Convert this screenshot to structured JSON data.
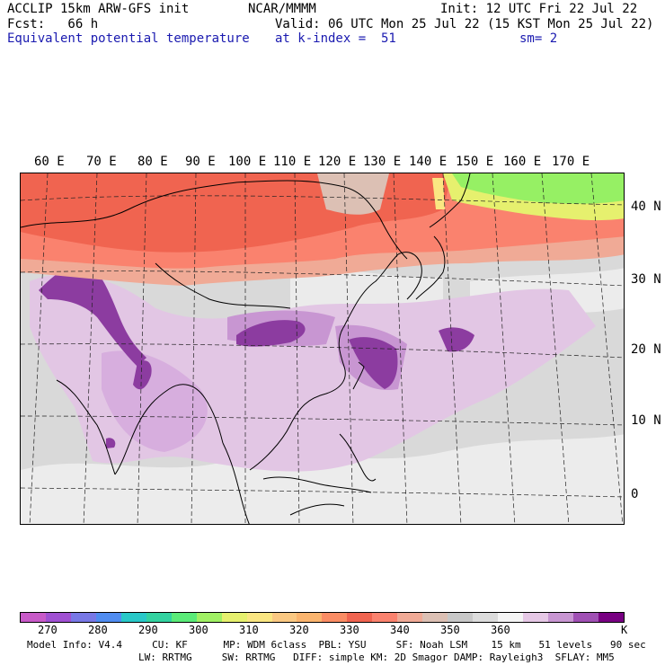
{
  "header": {
    "model": "ACCLIP 15km ARW-GFS init",
    "org": "NCAR/MMMM",
    "init": "Init: 12 UTC Fri 22 Jul 22",
    "fcst": "Fcst:   66 h",
    "valid": "Valid: 06 UTC Mon 25 Jul 22 (15 KST Mon 25 Jul 22)",
    "field": "Equivalent potential temperature",
    "level": "at k-index =  51",
    "smooth": "sm= 2"
  },
  "lon_labels": [
    "60 E",
    "70 E",
    "80 E",
    "90 E",
    "100 E",
    "110 E",
    "120 E",
    "130 E",
    "140 E",
    "150 E",
    "160 E",
    "170 E"
  ],
  "lat_labels": [
    "40 N",
    "30 N",
    "20 N",
    "10 N",
    "0"
  ],
  "colorbar": {
    "colors": [
      "#c85ac8",
      "#a050d2",
      "#7878e6",
      "#508cf0",
      "#28c8c8",
      "#32d2a0",
      "#5aeb78",
      "#a0f064",
      "#e6f06e",
      "#fae682",
      "#fac882",
      "#fab46e",
      "#fa8c64",
      "#f06450",
      "#fa826e",
      "#f0aa96",
      "#dcc0b4",
      "#c8c8c8",
      "#dcdcdc",
      "#f5f5f5",
      "#e6c8e6",
      "#c896d2",
      "#a050b4",
      "#780082"
    ],
    "ticks": [
      "270",
      "280",
      "290",
      "300",
      "310",
      "320",
      "330",
      "340",
      "350",
      "360"
    ],
    "unit": "K"
  },
  "model_info": {
    "line1": "Model Info: V4.4     CU: KF      MP: WDM 6class  PBL: YSU     SF: Noah LSM    15 km   51 levels   90 sec",
    "line2": "LW: RRTMG     SW: RRTMG   DIFF: simple KM: 2D Smagor DAMP: Rayleigh3  SFLAY: MM5"
  },
  "map_colors": {
    "background": "#d9d9d9",
    "warm_red": "#f06450",
    "warm_orange": "#fa826e",
    "warm_peach": "#f0aa96",
    "tan": "#dcc0b4",
    "light": "#f2f2f2",
    "lavender": "#e6c8e6",
    "violet": "#c896d2",
    "purple": "#8c3ca0",
    "dark_purple": "#780082",
    "green": "#8cf064",
    "yellow": "#e6f06e"
  }
}
